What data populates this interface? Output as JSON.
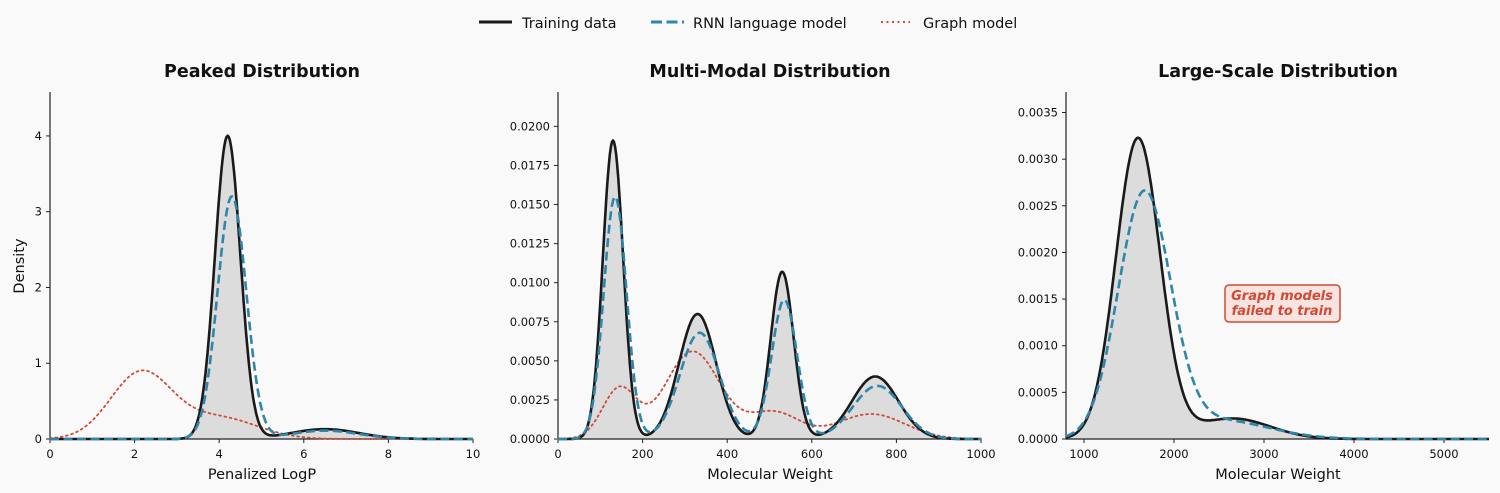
{
  "legend": {
    "items": [
      {
        "label": "Training data",
        "color": "#1a1a1a",
        "style": "solid"
      },
      {
        "label": "RNN language model",
        "color": "#2e86ab",
        "style": "dashed"
      },
      {
        "label": "Graph model",
        "color": "#d04a35",
        "style": "dotted"
      }
    ]
  },
  "colors": {
    "training": "#1a1a1a",
    "rnn": "#2e86ab",
    "graph": "#d04a35",
    "fill": "#dcdcdc",
    "background": "#f9f9f9",
    "annotation_bg": "#f7e3df"
  },
  "chart_data": [
    {
      "type": "line",
      "subtype": "kde",
      "title": "Peaked Distribution",
      "xlabel": "Penalized LogP",
      "ylabel": "Density",
      "xlim": [
        0,
        10
      ],
      "ylim": [
        0,
        4.58
      ],
      "xticks": [
        0,
        2,
        4,
        6,
        8,
        10
      ],
      "xtick_labels": [
        "0",
        "2",
        "4",
        "6",
        "8",
        "10"
      ],
      "yticks": [
        0,
        1,
        2,
        3,
        4
      ],
      "ytick_labels": [
        "0",
        "1",
        "2",
        "3",
        "4"
      ],
      "grid": false,
      "series": [
        {
          "name": "Training data",
          "filled": true,
          "components": [
            [
              4.0,
              4.2,
              0.3
            ],
            [
              0.13,
              6.5,
              0.8
            ]
          ],
          "peaks": [
            {
              "x": 4.2,
              "y": 4.0
            },
            {
              "x": 6.5,
              "y": 0.13
            }
          ]
        },
        {
          "name": "RNN language model",
          "components": [
            [
              3.2,
              4.3,
              0.34
            ],
            [
              0.11,
              6.5,
              0.8
            ]
          ],
          "peaks": [
            {
              "x": 4.3,
              "y": 3.2
            },
            {
              "x": 6.5,
              "y": 0.11
            }
          ]
        },
        {
          "name": "Graph model",
          "components": [
            [
              0.87,
              2.15,
              0.72
            ],
            [
              0.28,
              4.0,
              0.9
            ]
          ],
          "peaks": [
            {
              "x": 2.15,
              "y": 0.9
            }
          ]
        }
      ]
    },
    {
      "type": "line",
      "subtype": "kde",
      "title": "Multi-Modal Distribution",
      "xlabel": "Molecular Weight",
      "ylabel": "",
      "xlim": [
        0,
        1000
      ],
      "ylim": [
        0,
        0.0222
      ],
      "xticks": [
        0,
        200,
        400,
        600,
        800,
        1000
      ],
      "xtick_labels": [
        "0",
        "200",
        "400",
        "600",
        "800",
        "1000"
      ],
      "yticks": [
        0,
        0.0025,
        0.005,
        0.0075,
        0.01,
        0.0125,
        0.015,
        0.0175,
        0.02
      ],
      "ytick_labels": [
        "0.0000",
        "0.0025",
        "0.0050",
        "0.0075",
        "0.0100",
        "0.0125",
        "0.0150",
        "0.0175",
        "0.0200"
      ],
      "grid": false,
      "series": [
        {
          "name": "Training data",
          "filled": true,
          "components": [
            [
              0.0191,
              130,
              24
            ],
            [
              0.008,
              330,
              44
            ],
            [
              0.0107,
              530,
              27
            ],
            [
              0.004,
              750,
              55
            ]
          ],
          "peaks": [
            {
              "x": 130,
              "y": 0.0191
            },
            {
              "x": 330,
              "y": 0.008
            },
            {
              "x": 530,
              "y": 0.0107
            },
            {
              "x": 750,
              "y": 0.004
            }
          ]
        },
        {
          "name": "RNN language model",
          "components": [
            [
              0.0155,
              135,
              27
            ],
            [
              0.0068,
              335,
              47
            ],
            [
              0.0089,
              535,
              30
            ],
            [
              0.0034,
              755,
              58
            ]
          ],
          "peaks": [
            {
              "x": 135,
              "y": 0.0157
            },
            {
              "x": 335,
              "y": 0.0069
            },
            {
              "x": 535,
              "y": 0.0091
            },
            {
              "x": 755,
              "y": 0.0034
            }
          ]
        },
        {
          "name": "Graph model",
          "components": [
            [
              0.0032,
              145,
              40
            ],
            [
              0.0056,
              318,
              65
            ],
            [
              0.0017,
              510,
              60
            ],
            [
              0.0016,
              740,
              80
            ]
          ],
          "peaks": [
            {
              "x": 150,
              "y": 0.0035
            },
            {
              "x": 315,
              "y": 0.006
            },
            {
              "x": 510,
              "y": 0.002
            },
            {
              "x": 740,
              "y": 0.0017
            }
          ]
        }
      ]
    },
    {
      "type": "line",
      "subtype": "kde",
      "title": "Large-Scale Distribution",
      "xlabel": "Molecular Weight",
      "ylabel": "",
      "xlim": [
        800,
        5500
      ],
      "ylim": [
        0,
        0.00372
      ],
      "xticks": [
        1000,
        2000,
        3000,
        4000,
        5000
      ],
      "xtick_labels": [
        "1000",
        "2000",
        "3000",
        "4000",
        "5000"
      ],
      "yticks": [
        0,
        0.0005,
        0.001,
        0.0015,
        0.002,
        0.0025,
        0.003,
        0.0035
      ],
      "ytick_labels": [
        "0.0000",
        "0.0005",
        "0.0010",
        "0.0015",
        "0.0020",
        "0.0025",
        "0.0030",
        "0.0035"
      ],
      "grid": false,
      "annotation": {
        "lines": [
          "Graph models",
          "failed to train"
        ],
        "x": 2950,
        "y": 0.00146
      },
      "series": [
        {
          "name": "Training data",
          "filled": true,
          "components": [
            [
              0.00322,
              1600,
              245
            ],
            [
              0.00022,
              2650,
              420
            ]
          ],
          "peaks": [
            {
              "x": 1600,
              "y": 0.00324
            },
            {
              "x": 2600,
              "y": 0.00025
            }
          ]
        },
        {
          "name": "RNN language model",
          "components": [
            [
              0.0026,
              1670,
              290
            ],
            [
              0.0002,
              2500,
              550
            ]
          ],
          "peaks": [
            {
              "x": 1670,
              "y": 0.00263
            }
          ]
        }
      ]
    }
  ]
}
